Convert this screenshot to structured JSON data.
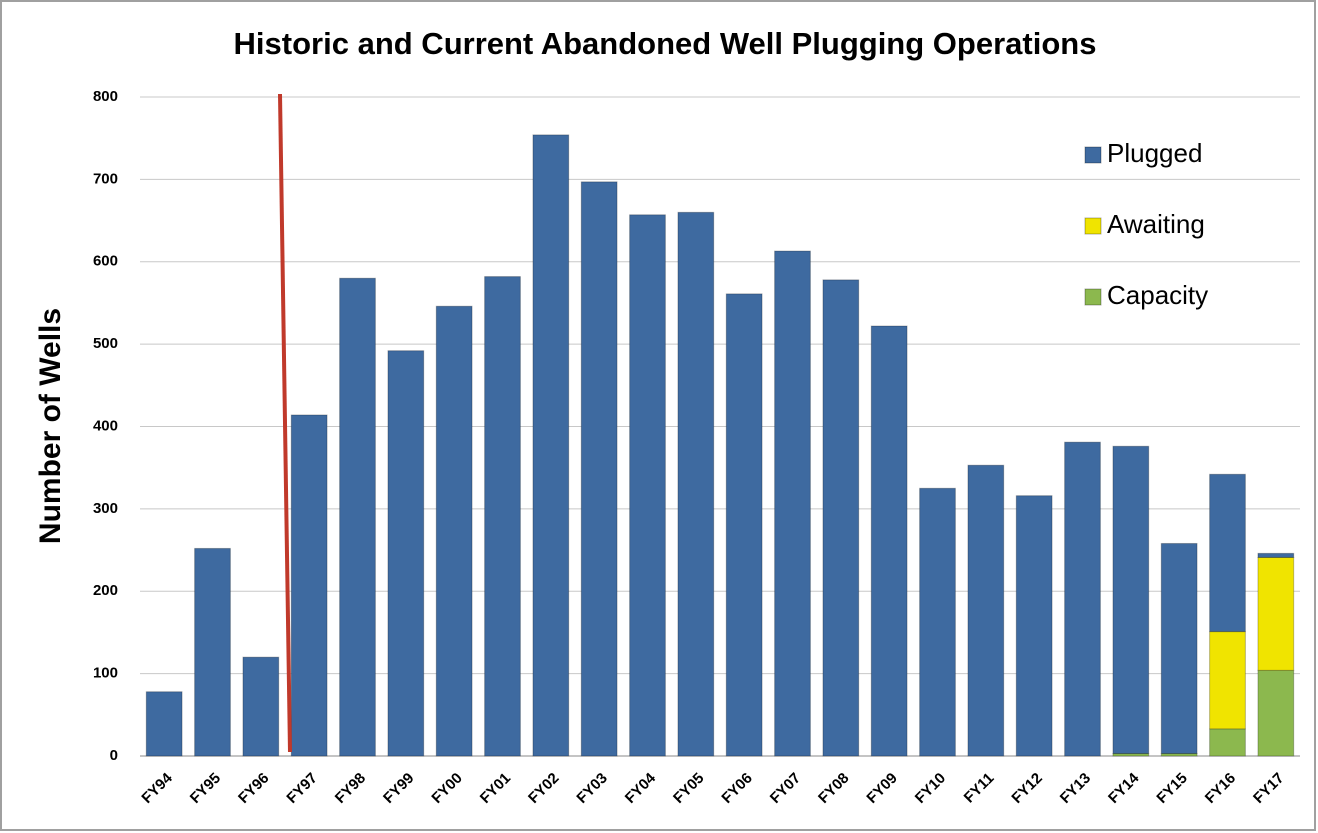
{
  "chart_data": {
    "type": "stacked_bar",
    "title": "Historic and Current Abandoned Well Plugging Operations",
    "y_label": "Number of Wells",
    "categories": [
      "FY94",
      "FY95",
      "FY96",
      "FY97",
      "FY98",
      "FY99",
      "FY00",
      "FY01",
      "FY02",
      "FY03",
      "FY04",
      "FY05",
      "FY06",
      "FY07",
      "FY08",
      "FY09",
      "FY10",
      "FY11",
      "FY12",
      "FY13",
      "FY14",
      "FY15",
      "FY16",
      "FY17"
    ],
    "series": [
      {
        "name": "Plugged",
        "color": "#3e6aa0",
        "values": [
          78,
          252,
          120,
          414,
          580,
          492,
          546,
          582,
          754,
          697,
          657,
          660,
          561,
          613,
          578,
          522,
          325,
          353,
          316,
          381,
          373,
          255,
          191,
          5
        ]
      },
      {
        "name": "Awaiting",
        "color": "#f0e400",
        "values": [
          0,
          0,
          0,
          0,
          0,
          0,
          0,
          0,
          0,
          0,
          0,
          0,
          0,
          0,
          0,
          0,
          0,
          0,
          0,
          0,
          0,
          0,
          118,
          137
        ]
      },
      {
        "name": "Capacity",
        "color": "#8cb84e",
        "values": [
          0,
          0,
          0,
          0,
          0,
          0,
          0,
          0,
          0,
          0,
          0,
          0,
          0,
          0,
          0,
          0,
          0,
          0,
          0,
          0,
          3,
          3,
          33,
          104
        ]
      }
    ],
    "ylim": [
      0,
      800
    ],
    "yticks": [
      0,
      100,
      200,
      300,
      400,
      500,
      600,
      700,
      800
    ],
    "grid": true,
    "legend": "top-right"
  }
}
